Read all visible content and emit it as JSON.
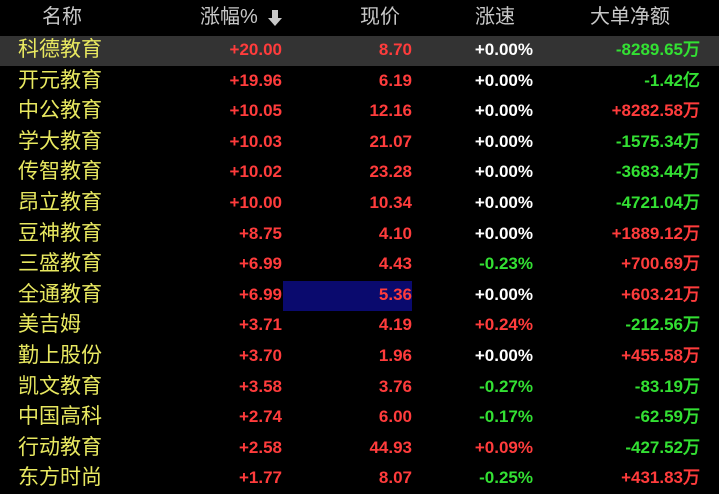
{
  "table": {
    "columns": [
      "名称",
      "涨幅%",
      "现价",
      "涨速",
      "大单净额"
    ],
    "rows": [
      [
        "科德教育",
        "+20.00",
        "8.70",
        "+0.00%",
        "-8289.65万"
      ],
      [
        "开元教育",
        "+19.96",
        "6.19",
        "+0.00%",
        "-1.42亿"
      ],
      [
        "中公教育",
        "+10.05",
        "12.16",
        "+0.00%",
        "+8282.58万"
      ],
      [
        "学大教育",
        "+10.03",
        "21.07",
        "+0.00%",
        "-1575.34万"
      ],
      [
        "传智教育",
        "+10.02",
        "23.28",
        "+0.00%",
        "-3683.44万"
      ],
      [
        "昂立教育",
        "+10.00",
        "10.34",
        "+0.00%",
        "-4721.04万"
      ],
      [
        "豆神教育",
        "+8.75",
        "4.10",
        "+0.00%",
        "+1889.12万"
      ],
      [
        "三盛教育",
        "+6.99",
        "4.43",
        "-0.23%",
        "+700.69万"
      ],
      [
        "全通教育",
        "+6.99",
        "5.36",
        "+0.00%",
        "+603.21万"
      ],
      [
        "美吉姆",
        "+3.71",
        "4.19",
        "+0.24%",
        "-212.56万"
      ],
      [
        "勤上股份",
        "+3.70",
        "1.96",
        "+0.00%",
        "+455.58万"
      ],
      [
        "凯文教育",
        "+3.58",
        "3.76",
        "-0.27%",
        "-83.19万"
      ],
      [
        "中国高科",
        "+2.74",
        "6.00",
        "-0.17%",
        "-62.59万"
      ],
      [
        "行动教育",
        "+2.58",
        "44.93",
        "+0.09%",
        "-427.52万"
      ],
      [
        "东方时尚",
        "+1.77",
        "8.07",
        "-0.25%",
        "+431.83万"
      ]
    ]
  }
}
